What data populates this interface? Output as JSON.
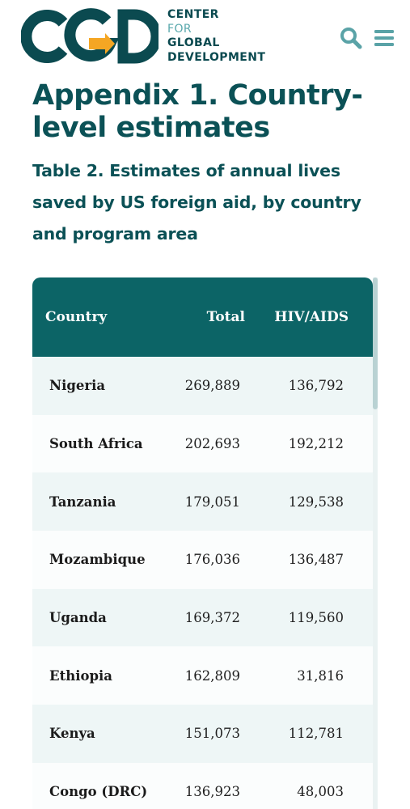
{
  "header": {
    "logo_letters": "CGD",
    "logo_lines": [
      "CENTER",
      "FOR",
      "GLOBAL",
      "DEVELOPMENT"
    ],
    "search_icon": "search-icon",
    "menu_icon": "hamburger-menu-icon",
    "colors": {
      "brand_teal": "#0b5156",
      "accent_orange": "#f5a623",
      "light_teal": "#59a8ac"
    }
  },
  "main": {
    "appendix_title": "Appendix 1. Country-level estimates",
    "table_title": "Table 2. Estimates of annual lives saved by US foreign aid, by country and program area"
  },
  "table": {
    "headers": {
      "country": "Country",
      "total": "Total",
      "hiv": "HIV/AIDS"
    },
    "rows": [
      {
        "country": "Nigeria",
        "total": "269,889",
        "hiv": "136,792"
      },
      {
        "country": "South Africa",
        "total": "202,693",
        "hiv": "192,212"
      },
      {
        "country": "Tanzania",
        "total": "179,051",
        "hiv": "129,538"
      },
      {
        "country": "Mozambique",
        "total": "176,036",
        "hiv": "136,487"
      },
      {
        "country": "Uganda",
        "total": "169,372",
        "hiv": "119,560"
      },
      {
        "country": "Ethiopia",
        "total": "162,809",
        "hiv": "31,816"
      },
      {
        "country": "Kenya",
        "total": "151,073",
        "hiv": "112,781"
      },
      {
        "country": "Congo (DRC)",
        "total": "136,923",
        "hiv": "48,003"
      }
    ],
    "colors": {
      "header_bg": "#0c6466",
      "row_odd": "#eef6f6",
      "row_even": "#fbfdfd"
    }
  }
}
